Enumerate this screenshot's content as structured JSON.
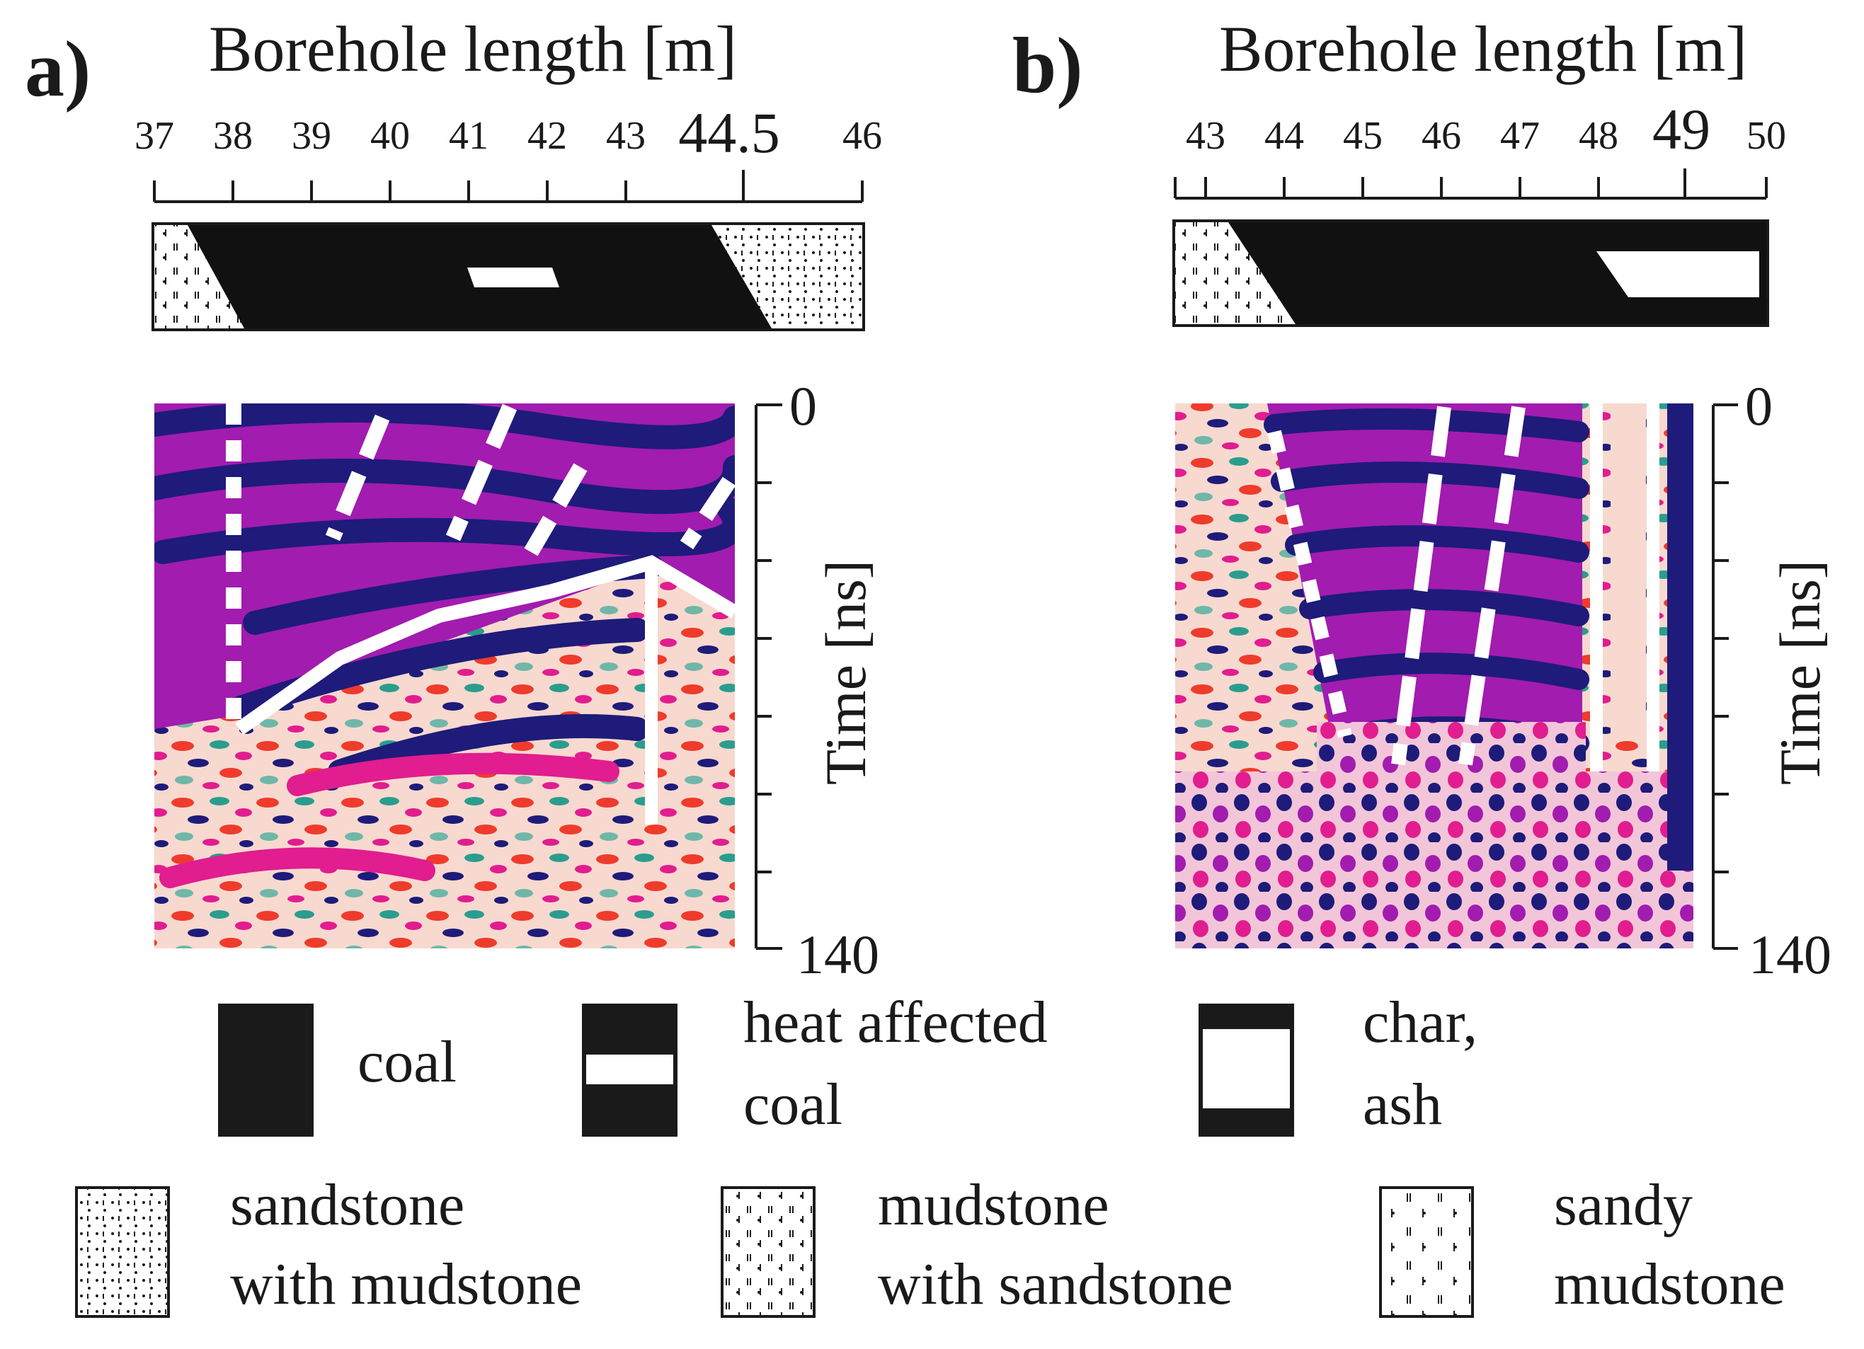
{
  "panel_a": {
    "label": "a)",
    "axis_title": "Borehole length [m]",
    "ticks": [
      "37",
      "38",
      "39",
      "40",
      "41",
      "42",
      "43",
      "44.5",
      "46"
    ],
    "time_label": "Time [ns]",
    "time_ticks": [
      "0",
      "140"
    ]
  },
  "panel_b": {
    "label": "b)",
    "axis_title": "Borehole length [m]",
    "ticks": [
      "43",
      "44",
      "45",
      "46",
      "47",
      "48",
      "49",
      "50"
    ],
    "time_label": "Time [ns]",
    "time_ticks": [
      "0",
      "140"
    ]
  },
  "legend": {
    "coal": "coal",
    "heat_affected_line1": "heat affected",
    "heat_affected_line2": "coal",
    "char_line1": "char,",
    "char_line2": "ash",
    "sandstone_line1": "sandstone",
    "sandstone_line2": "with mudstone",
    "mudstone_line1": "mudstone",
    "mudstone_line2": "with sandstone",
    "sandy_line1": "sandy",
    "sandy_line2": "mudstone"
  },
  "colors": {
    "ink": "#1a1a1a",
    "radar_purple": "#a21caf",
    "radar_blue": "#1e1b7a",
    "radar_red": "#ef3b2c",
    "radar_teal": "#2a9d8f"
  }
}
